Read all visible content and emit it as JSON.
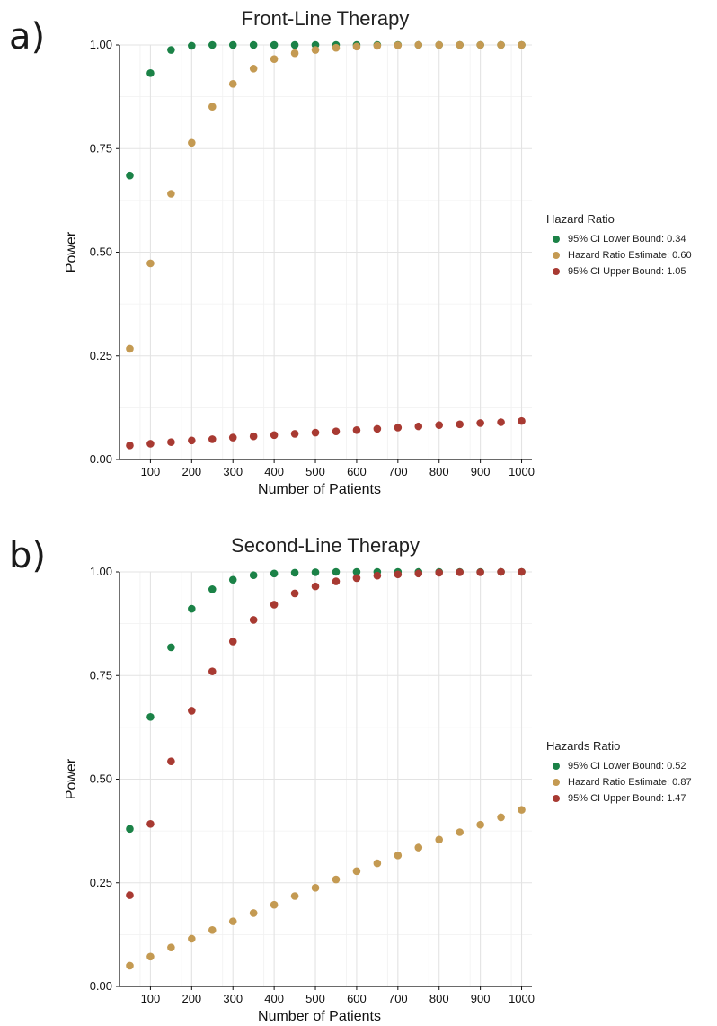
{
  "chart_data": [
    {
      "type": "scatter",
      "panel_label": "a)",
      "title": "Front-Line Therapy",
      "xlabel": "Number of Patients",
      "ylabel": "Power",
      "x_ticks": [
        "100",
        "200",
        "300",
        "400",
        "500",
        "600",
        "700",
        "800",
        "900",
        "1000"
      ],
      "y_ticks": [
        "0.00",
        "0.25",
        "0.50",
        "0.75",
        "1.00"
      ],
      "xlim": [
        25,
        1025
      ],
      "ylim": [
        0,
        1
      ],
      "grid": true,
      "legend_title": "Hazard Ratio",
      "legend_position": "right",
      "x": [
        50,
        100,
        150,
        200,
        250,
        300,
        350,
        400,
        450,
        500,
        550,
        600,
        650,
        700,
        750,
        800,
        850,
        900,
        950,
        1000
      ],
      "series": [
        {
          "name": "95% CI Lower Bound: 0.34",
          "color": "#1b8247",
          "values": [
            0.685,
            0.932,
            0.988,
            0.998,
            1.0,
            1.0,
            1.0,
            1.0,
            1.0,
            1.0,
            1.0,
            1.0,
            1.0,
            1.0,
            1.0,
            1.0,
            1.0,
            1.0,
            1.0,
            1.0
          ]
        },
        {
          "name": "Hazard Ratio Estimate: 0.60",
          "color": "#c49a52",
          "values": [
            0.267,
            0.473,
            0.641,
            0.764,
            0.851,
            0.906,
            0.943,
            0.966,
            0.98,
            0.988,
            0.993,
            0.996,
            0.998,
            0.999,
            1.0,
            1.0,
            1.0,
            1.0,
            1.0,
            1.0
          ]
        },
        {
          "name": "95% CI Upper Bound: 1.05",
          "color": "#a83a32",
          "values": [
            0.034,
            0.038,
            0.042,
            0.046,
            0.049,
            0.053,
            0.056,
            0.059,
            0.062,
            0.065,
            0.068,
            0.071,
            0.074,
            0.077,
            0.08,
            0.083,
            0.085,
            0.088,
            0.09,
            0.093
          ]
        }
      ]
    },
    {
      "type": "scatter",
      "panel_label": "b)",
      "title": "Second-Line Therapy",
      "xlabel": "Number of Patients",
      "ylabel": "Power",
      "x_ticks": [
        "100",
        "200",
        "300",
        "400",
        "500",
        "600",
        "700",
        "800",
        "900",
        "1000"
      ],
      "y_ticks": [
        "0.00",
        "0.25",
        "0.50",
        "0.75",
        "1.00"
      ],
      "xlim": [
        25,
        1025
      ],
      "ylim": [
        0,
        1
      ],
      "grid": true,
      "legend_title": "Hazards Ratio",
      "legend_position": "right",
      "x": [
        50,
        100,
        150,
        200,
        250,
        300,
        350,
        400,
        450,
        500,
        550,
        600,
        650,
        700,
        750,
        800,
        850,
        900,
        950,
        1000
      ],
      "series": [
        {
          "name": "95% CI Lower Bound: 0.52",
          "color": "#1b8247",
          "values": [
            0.38,
            0.65,
            0.818,
            0.911,
            0.958,
            0.981,
            0.992,
            0.996,
            0.998,
            0.999,
            1.0,
            1.0,
            1.0,
            1.0,
            1.0,
            1.0,
            1.0,
            1.0,
            1.0,
            1.0
          ]
        },
        {
          "name": "Hazard Ratio Estimate: 0.87",
          "color": "#c49a52",
          "values": [
            0.05,
            0.072,
            0.094,
            0.115,
            0.136,
            0.157,
            0.177,
            0.197,
            0.218,
            0.238,
            0.258,
            0.278,
            0.297,
            0.316,
            0.335,
            0.354,
            0.372,
            0.39,
            0.408,
            0.426
          ]
        },
        {
          "name": "95% CI Upper Bound: 1.47",
          "color": "#a83a32",
          "values": [
            0.22,
            0.392,
            0.543,
            0.665,
            0.76,
            0.832,
            0.884,
            0.921,
            0.948,
            0.965,
            0.977,
            0.985,
            0.991,
            0.994,
            0.996,
            0.998,
            0.999,
            0.999,
            1.0,
            1.0
          ]
        }
      ]
    }
  ]
}
